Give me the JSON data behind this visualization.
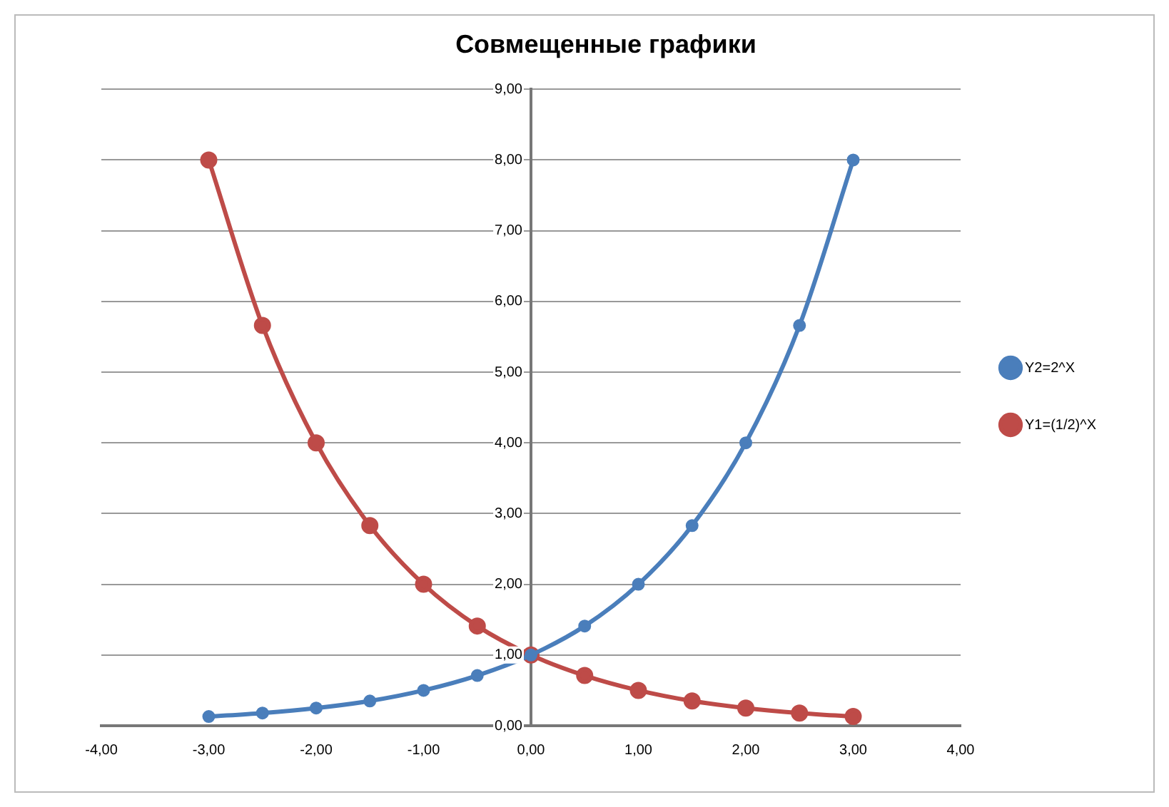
{
  "chart_data": {
    "type": "line",
    "title": "Совмещенные графики",
    "x": [
      -3,
      -2.5,
      -2,
      -1.5,
      -1,
      -0.5,
      0,
      0.5,
      1,
      1.5,
      2,
      2.5,
      3
    ],
    "series": [
      {
        "name": "Y2=2^X",
        "color": "#4a7ebb",
        "values": [
          0.13,
          0.18,
          0.25,
          0.35,
          0.5,
          0.71,
          1,
          1.41,
          2,
          2.83,
          4,
          5.66,
          8
        ]
      },
      {
        "name": "Y1=(1/2)^X",
        "color": "#be4b48",
        "values": [
          8,
          5.66,
          4,
          2.83,
          2,
          1.41,
          1,
          0.71,
          0.5,
          0.35,
          0.25,
          0.18,
          0.13
        ]
      }
    ],
    "xlim": [
      -4,
      4
    ],
    "xticks": [
      {
        "value": -4,
        "label": "-4,00"
      },
      {
        "value": -3,
        "label": "-3,00"
      },
      {
        "value": -2,
        "label": "-2,00"
      },
      {
        "value": -1,
        "label": "-1,00"
      },
      {
        "value": 0,
        "label": "0,00"
      },
      {
        "value": 1,
        "label": "1,00"
      },
      {
        "value": 2,
        "label": "2,00"
      },
      {
        "value": 3,
        "label": "3,00"
      },
      {
        "value": 4,
        "label": "4,00"
      }
    ],
    "ylim": [
      0,
      9
    ],
    "yticks": [
      {
        "value": 0,
        "label": "0,00"
      },
      {
        "value": 1,
        "label": "1,00"
      },
      {
        "value": 2,
        "label": "2,00"
      },
      {
        "value": 3,
        "label": "3,00"
      },
      {
        "value": 4,
        "label": "4,00"
      },
      {
        "value": 5,
        "label": "5,00"
      },
      {
        "value": 6,
        "label": "6,00"
      },
      {
        "value": 7,
        "label": "7,00"
      },
      {
        "value": 8,
        "label": "8,00"
      },
      {
        "value": 9,
        "label": "9,00"
      }
    ],
    "grid": "y",
    "legend": "right",
    "marker": "circle",
    "line_style": "solid"
  }
}
